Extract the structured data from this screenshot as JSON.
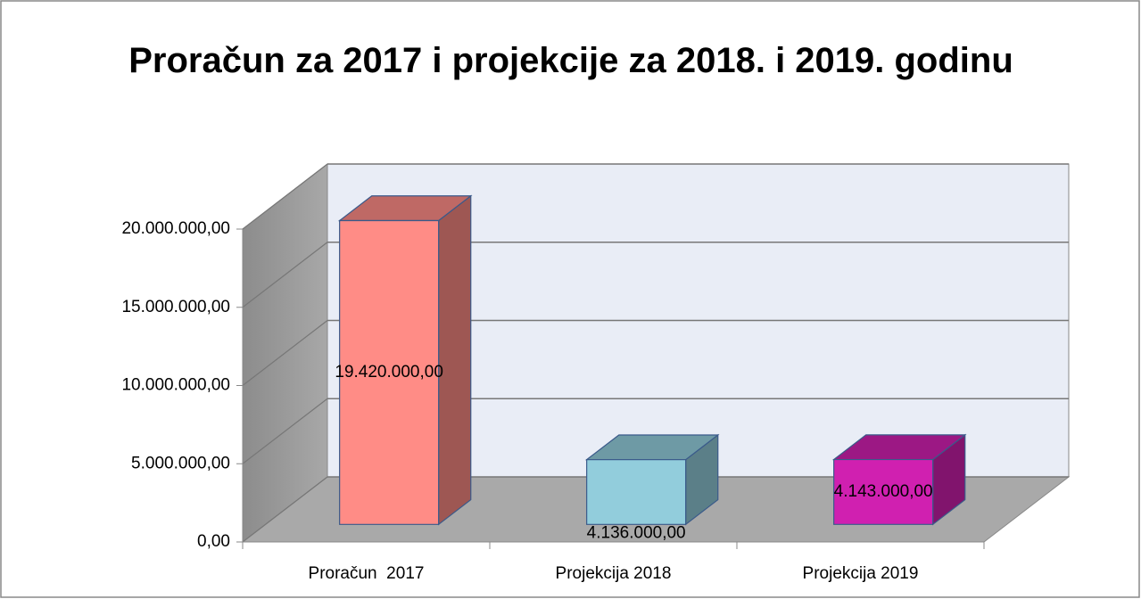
{
  "chart_data": {
    "type": "bar3d",
    "title": "Proračun za 2017 i projekcije za 2018. i 2019. godinu",
    "categories": [
      "Proračun  2017",
      "Projekcija 2018",
      "Projekcija 2019"
    ],
    "values": [
      19420000,
      4136000,
      4143000
    ],
    "value_labels": [
      "19.420.000,00",
      "4.136.000,00",
      "4.143.000,00"
    ],
    "colors": [
      "#ff8c86",
      "#92cddc",
      "#d020b0"
    ],
    "ylim": [
      0,
      20000000
    ],
    "yticks": [
      {
        "value": 0,
        "label": "0,00"
      },
      {
        "value": 5000000,
        "label": "5.000.000,00"
      },
      {
        "value": 10000000,
        "label": "10.000.000,00"
      },
      {
        "value": 15000000,
        "label": "15.000.000,00"
      },
      {
        "value": 20000000,
        "label": "20.000.000,00"
      }
    ],
    "grid": true
  }
}
